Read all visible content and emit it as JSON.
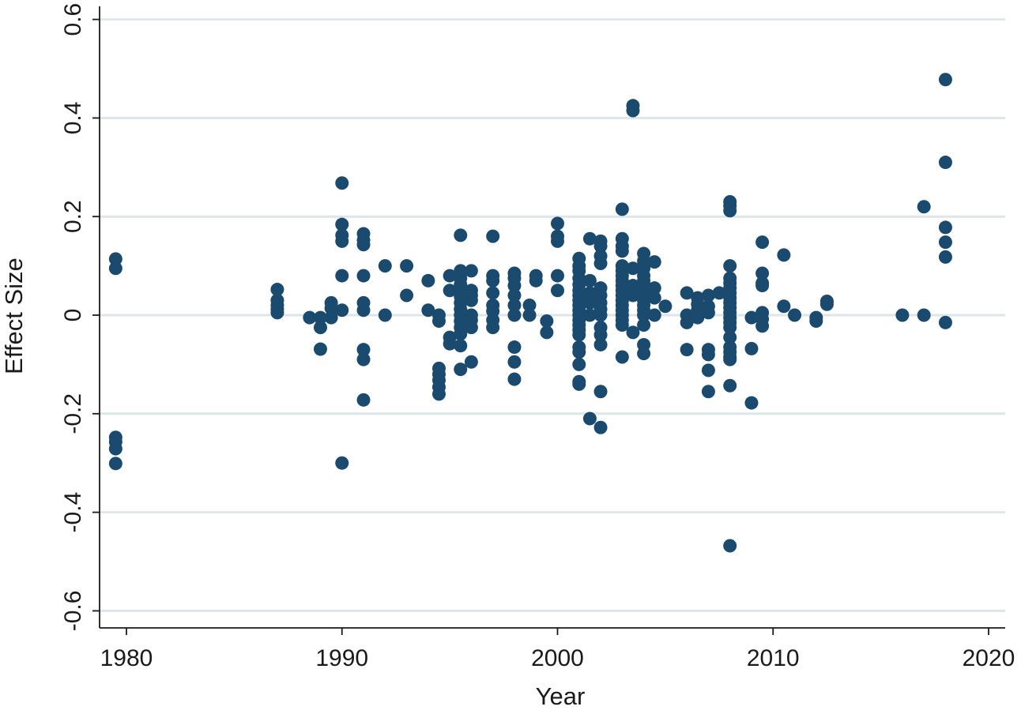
{
  "chart_data": {
    "type": "scatter",
    "xlabel": "Year",
    "ylabel": "Effect Size",
    "xlim": [
      1978.8,
      2020.8
    ],
    "ylim": [
      -0.635,
      0.635
    ],
    "x_ticks": [
      1980,
      1990,
      2000,
      2010,
      2020
    ],
    "y_ticks": [
      -0.6,
      -0.4,
      -0.2,
      0,
      0.2,
      0.4,
      0.6
    ],
    "x_tick_labels": [
      "1980",
      "1990",
      "2000",
      "2010",
      "2020"
    ],
    "y_tick_labels": [
      "-0.6",
      "-0.4",
      "-0.2",
      "0",
      "0.2",
      "0.4",
      "0.6"
    ],
    "grid": "horizontal",
    "colors": {
      "marker": "#1a4a6e",
      "grid": "#dde6e8",
      "axis": "#1a1a1a"
    },
    "points": [
      [
        1979.5,
        0.114
      ],
      [
        1979.5,
        0.095
      ],
      [
        1979.5,
        -0.248
      ],
      [
        1979.5,
        -0.257
      ],
      [
        1979.5,
        -0.271
      ],
      [
        1979.5,
        -0.301
      ],
      [
        1987,
        0.052
      ],
      [
        1987,
        0.03
      ],
      [
        1987,
        0.02
      ],
      [
        1987,
        0.012
      ],
      [
        1987,
        0.005
      ],
      [
        1988.5,
        -0.005
      ],
      [
        1989,
        -0.005
      ],
      [
        1989,
        -0.025
      ],
      [
        1989,
        -0.069
      ],
      [
        1989.5,
        0.025
      ],
      [
        1989.5,
        -0.005
      ],
      [
        1989.5,
        0.014
      ],
      [
        1990,
        0.268
      ],
      [
        1990,
        0.184
      ],
      [
        1990,
        0.162
      ],
      [
        1990,
        0.15
      ],
      [
        1990,
        0.08
      ],
      [
        1990,
        0.01
      ],
      [
        1990,
        -0.3
      ],
      [
        1991,
        0.165
      ],
      [
        1991,
        0.152
      ],
      [
        1991,
        0.143
      ],
      [
        1991,
        0.08
      ],
      [
        1991,
        0.025
      ],
      [
        1991,
        0.01
      ],
      [
        1991,
        -0.07
      ],
      [
        1991,
        -0.09
      ],
      [
        1991,
        -0.172
      ],
      [
        1992,
        0.1
      ],
      [
        1992,
        0
      ],
      [
        1993,
        0.1
      ],
      [
        1993,
        0.04
      ],
      [
        1994,
        0.07
      ],
      [
        1994,
        0.01
      ],
      [
        1994.5,
        0
      ],
      [
        1994.5,
        -0.012
      ],
      [
        1994.5,
        -0.108
      ],
      [
        1994.5,
        -0.12
      ],
      [
        1994.5,
        -0.132
      ],
      [
        1994.5,
        -0.146
      ],
      [
        1994.5,
        -0.16
      ],
      [
        1995,
        0.08
      ],
      [
        1995,
        0.05
      ],
      [
        1995,
        -0.045
      ],
      [
        1995,
        -0.058
      ],
      [
        1995.5,
        0.162
      ],
      [
        1995.5,
        0.09
      ],
      [
        1995.5,
        0.075
      ],
      [
        1995.5,
        0.062
      ],
      [
        1995.5,
        0.05
      ],
      [
        1995.5,
        0.038
      ],
      [
        1995.5,
        0.025
      ],
      [
        1995.5,
        0.012
      ],
      [
        1995.5,
        0
      ],
      [
        1995.5,
        -0.012
      ],
      [
        1995.5,
        -0.025
      ],
      [
        1995.5,
        -0.038
      ],
      [
        1995.5,
        -0.062
      ],
      [
        1995.5,
        -0.11
      ],
      [
        1996,
        0.09
      ],
      [
        1996,
        0.05
      ],
      [
        1996,
        0.04
      ],
      [
        1996,
        0.03
      ],
      [
        1996,
        0
      ],
      [
        1996,
        -0.01
      ],
      [
        1996,
        -0.025
      ],
      [
        1996,
        -0.095
      ],
      [
        1997,
        0.16
      ],
      [
        1997,
        0.08
      ],
      [
        1997,
        0.07
      ],
      [
        1997,
        0.045
      ],
      [
        1997,
        0.02
      ],
      [
        1997,
        0.008
      ],
      [
        1997,
        -0.01
      ],
      [
        1997,
        -0.025
      ],
      [
        1998,
        0.085
      ],
      [
        1998,
        0.075
      ],
      [
        1998,
        0.06
      ],
      [
        1998,
        0.04
      ],
      [
        1998,
        0.02
      ],
      [
        1998,
        0
      ],
      [
        1998,
        -0.065
      ],
      [
        1998,
        -0.095
      ],
      [
        1998,
        -0.13
      ],
      [
        1998.7,
        0.02
      ],
      [
        1998.7,
        0
      ],
      [
        1999,
        0.08
      ],
      [
        1999,
        0.07
      ],
      [
        1999.5,
        -0.012
      ],
      [
        1999.5,
        -0.035
      ],
      [
        2000,
        0.186
      ],
      [
        2000,
        0.16
      ],
      [
        2000,
        0.15
      ],
      [
        2000,
        0.08
      ],
      [
        2000,
        0.05
      ],
      [
        2001,
        0.115
      ],
      [
        2001,
        0.1
      ],
      [
        2001,
        0.09
      ],
      [
        2001,
        0.075
      ],
      [
        2001,
        0.062
      ],
      [
        2001,
        0.05
      ],
      [
        2001,
        0.04
      ],
      [
        2001,
        0.03
      ],
      [
        2001,
        0.02
      ],
      [
        2001,
        0.01
      ],
      [
        2001,
        0
      ],
      [
        2001,
        -0.01
      ],
      [
        2001,
        -0.02
      ],
      [
        2001,
        -0.03
      ],
      [
        2001,
        -0.04
      ],
      [
        2001,
        -0.065
      ],
      [
        2001,
        -0.075
      ],
      [
        2001,
        -0.1
      ],
      [
        2001,
        -0.135
      ],
      [
        2001,
        -0.14
      ],
      [
        2001.5,
        0.155
      ],
      [
        2001.5,
        0.07
      ],
      [
        2001.5,
        0.045
      ],
      [
        2001.5,
        0.025
      ],
      [
        2001.5,
        0
      ],
      [
        2001.5,
        -0.21
      ],
      [
        2002,
        0.15
      ],
      [
        2002,
        0.14
      ],
      [
        2002,
        0.12
      ],
      [
        2002,
        0.105
      ],
      [
        2002,
        0.055
      ],
      [
        2002,
        0.04
      ],
      [
        2002,
        0.025
      ],
      [
        2002,
        0.012
      ],
      [
        2002,
        0
      ],
      [
        2002,
        -0.025
      ],
      [
        2002,
        -0.04
      ],
      [
        2002,
        -0.06
      ],
      [
        2002,
        -0.155
      ],
      [
        2002,
        -0.228
      ],
      [
        2003,
        0.215
      ],
      [
        2003,
        0.155
      ],
      [
        2003,
        0.14
      ],
      [
        2003,
        0.13
      ],
      [
        2003,
        0.1
      ],
      [
        2003,
        0.09
      ],
      [
        2003,
        0.08
      ],
      [
        2003,
        0.07
      ],
      [
        2003,
        0.06
      ],
      [
        2003,
        0.05
      ],
      [
        2003,
        0.04
      ],
      [
        2003,
        0.03
      ],
      [
        2003,
        0.02
      ],
      [
        2003,
        0.01
      ],
      [
        2003,
        0
      ],
      [
        2003,
        -0.01
      ],
      [
        2003,
        -0.02
      ],
      [
        2003,
        -0.085
      ],
      [
        2003.5,
        0.425
      ],
      [
        2003.5,
        0.415
      ],
      [
        2003.5,
        0.095
      ],
      [
        2003.5,
        0.06
      ],
      [
        2003.5,
        0.05
      ],
      [
        2003.5,
        0.04
      ],
      [
        2003.5,
        -0.035
      ],
      [
        2004,
        0.125
      ],
      [
        2004,
        0.11
      ],
      [
        2004,
        0.095
      ],
      [
        2004,
        0.08
      ],
      [
        2004,
        0.07
      ],
      [
        2004,
        0.06
      ],
      [
        2004,
        0.05
      ],
      [
        2004,
        0.04
      ],
      [
        2004,
        0.03
      ],
      [
        2004,
        0.02
      ],
      [
        2004,
        0.01
      ],
      [
        2004,
        0
      ],
      [
        2004,
        -0.02
      ],
      [
        2004,
        -0.06
      ],
      [
        2004,
        -0.078
      ],
      [
        2004.5,
        0.108
      ],
      [
        2004.5,
        0.055
      ],
      [
        2004.5,
        0.035
      ],
      [
        2004.5,
        0
      ],
      [
        2005,
        0.018
      ],
      [
        2006,
        0.045
      ],
      [
        2006,
        0
      ],
      [
        2006,
        -0.015
      ],
      [
        2006,
        -0.07
      ],
      [
        2006.5,
        0.035
      ],
      [
        2006.5,
        0.022
      ],
      [
        2006.5,
        0.01
      ],
      [
        2006.5,
        -0.005
      ],
      [
        2007,
        0.04
      ],
      [
        2007,
        0.018
      ],
      [
        2007,
        0.005
      ],
      [
        2007,
        -0.07
      ],
      [
        2007,
        -0.08
      ],
      [
        2007,
        -0.112
      ],
      [
        2007,
        -0.155
      ],
      [
        2007.5,
        0.045
      ],
      [
        2008,
        0.23
      ],
      [
        2008,
        0.222
      ],
      [
        2008,
        0.212
      ],
      [
        2008,
        0.1
      ],
      [
        2008,
        0.075
      ],
      [
        2008,
        0.065
      ],
      [
        2008,
        0.055
      ],
      [
        2008,
        0.045
      ],
      [
        2008,
        0.035
      ],
      [
        2008,
        0.025
      ],
      [
        2008,
        0.015
      ],
      [
        2008,
        0.005
      ],
      [
        2008,
        -0.005
      ],
      [
        2008,
        -0.015
      ],
      [
        2008,
        -0.025
      ],
      [
        2008,
        -0.045
      ],
      [
        2008,
        -0.065
      ],
      [
        2008,
        -0.075
      ],
      [
        2008,
        -0.085
      ],
      [
        2008,
        -0.09
      ],
      [
        2008,
        -0.143
      ],
      [
        2008,
        -0.468
      ],
      [
        2009,
        -0.005
      ],
      [
        2009,
        -0.068
      ],
      [
        2009,
        -0.178
      ],
      [
        2009.5,
        0.148
      ],
      [
        2009.5,
        0.085
      ],
      [
        2009.5,
        0.065
      ],
      [
        2009.5,
        0.06
      ],
      [
        2009.5,
        0.005
      ],
      [
        2009.5,
        -0.008
      ],
      [
        2009.5,
        -0.022
      ],
      [
        2010.5,
        0.122
      ],
      [
        2010.5,
        0.018
      ],
      [
        2011,
        0
      ],
      [
        2012,
        -0.005
      ],
      [
        2012,
        -0.012
      ],
      [
        2012.5,
        0.028
      ],
      [
        2012.5,
        0.022
      ],
      [
        2016,
        0
      ],
      [
        2017,
        0.22
      ],
      [
        2017,
        0
      ],
      [
        2018,
        0.478
      ],
      [
        2018,
        0.31
      ],
      [
        2018,
        0.178
      ],
      [
        2018,
        0.148
      ],
      [
        2018,
        0.118
      ],
      [
        2018,
        -0.015
      ]
    ]
  }
}
